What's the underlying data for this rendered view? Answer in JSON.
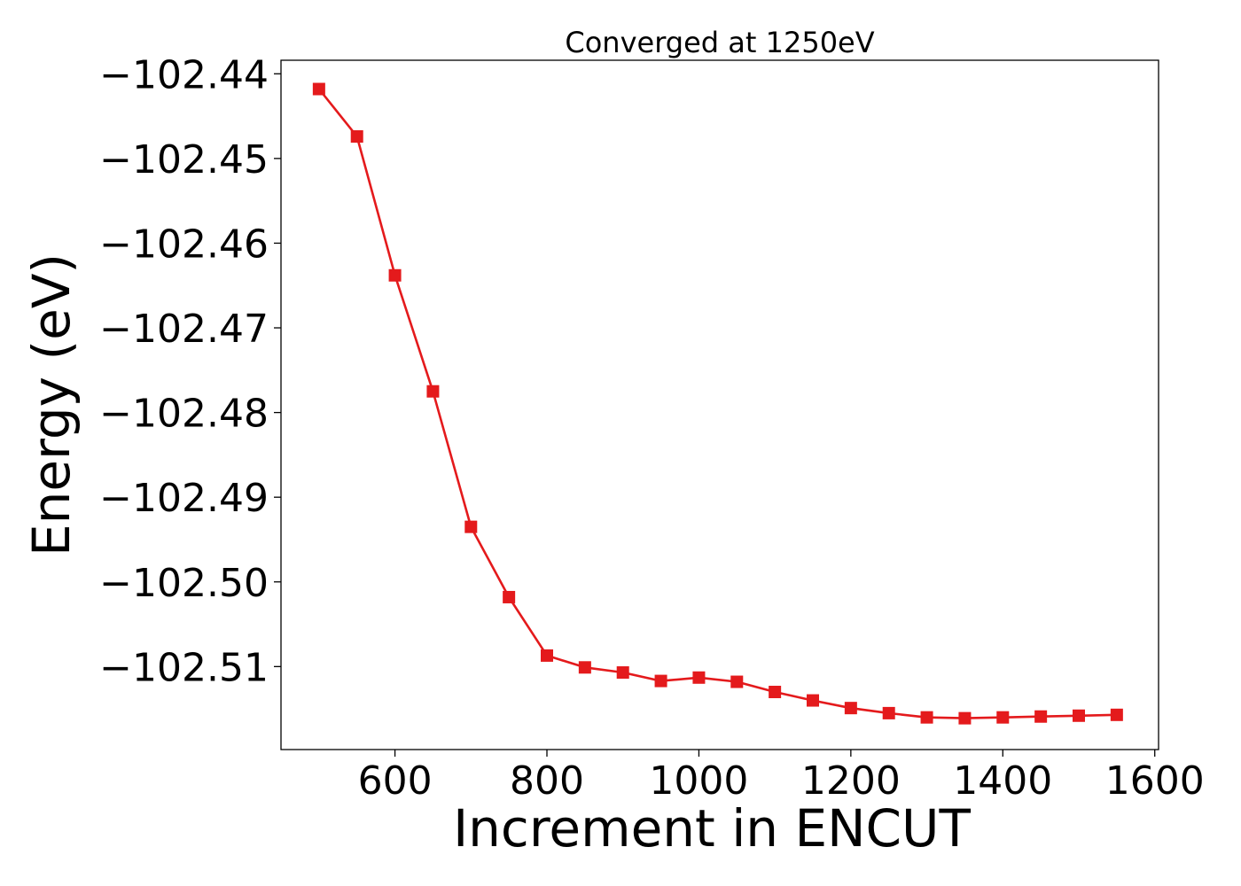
{
  "chart_data": {
    "type": "line",
    "title": "Converged at 1250eV",
    "xlabel": "Increment in ENCUT",
    "ylabel": "Energy (eV)",
    "xlim": [
      450,
      1605
    ],
    "ylim": [
      -102.5198,
      -102.4384
    ],
    "xticks": [
      600,
      800,
      1000,
      1200,
      1400,
      1600
    ],
    "xtick_labels": [
      "600",
      "800",
      "1000",
      "1200",
      "1400",
      "1600"
    ],
    "yticks": [
      -102.44,
      -102.45,
      -102.46,
      -102.47,
      -102.48,
      -102.49,
      -102.5,
      -102.51
    ],
    "ytick_labels": [
      "−102.44",
      "−102.45",
      "−102.46",
      "−102.47",
      "−102.48",
      "−102.49",
      "−102.50",
      "−102.51"
    ],
    "grid": false,
    "series": [
      {
        "color": "#e41a1c",
        "marker": "square",
        "x": [
          500,
          550,
          600,
          650,
          700,
          750,
          800,
          850,
          900,
          950,
          1000,
          1050,
          1100,
          1150,
          1200,
          1250,
          1300,
          1350,
          1400,
          1450,
          1500,
          1550
        ],
        "y": [
          -102.4418,
          -102.4474,
          -102.4638,
          -102.4775,
          -102.4935,
          -102.5018,
          -102.5087,
          -102.5101,
          -102.5107,
          -102.5117,
          -102.5113,
          -102.5118,
          -102.513,
          -102.514,
          -102.5149,
          -102.5155,
          -102.516,
          -102.5161,
          -102.516,
          -102.5159,
          -102.5158,
          -102.5157
        ]
      }
    ]
  }
}
